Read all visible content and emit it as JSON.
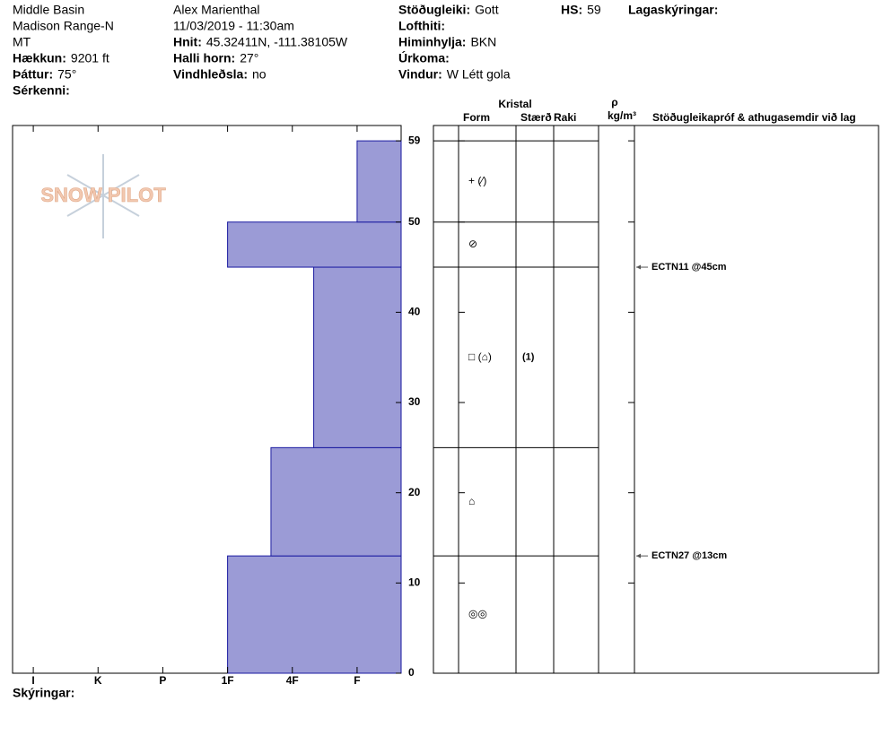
{
  "header": {
    "columns": [
      [
        {
          "text": "Middle Basin"
        },
        {
          "text": "Madison Range-N"
        },
        {
          "text": "MT"
        },
        {
          "label": "Hækkun:",
          "value": "9201 ft"
        },
        {
          "label": "Þáttur:",
          "value": "75°"
        },
        {
          "label": "Sérkenni:"
        }
      ],
      [
        {
          "text": "Alex Marienthal"
        },
        {
          "text": "11/03/2019 - 11:30am"
        },
        {
          "label": "Hnit:",
          "value": "45.32411N, -111.38105W"
        },
        {
          "label": "Halli horn:",
          "value": "27°"
        },
        {
          "label": "Vindhleðsla:",
          "value": "no"
        }
      ],
      [
        {
          "label": "Stöðugleiki:",
          "value": "Gott"
        },
        {
          "label": "Lofthiti:"
        },
        {
          "label": "Himinhylja:",
          "value": "BKN"
        },
        {
          "label": "Úrkoma:"
        },
        {
          "label": "Vindur:",
          "value": "W Létt gola"
        }
      ],
      [
        {
          "label": "HS:",
          "value": "59"
        }
      ],
      [
        {
          "label": "Lagaskýringar:"
        }
      ]
    ],
    "logo": "SNOW PILOT"
  },
  "chart_data": {
    "type": "bar",
    "orientation": "horizontal",
    "xlim": [
      6.32,
      0.32
    ],
    "xticks": [
      {
        "value": 6,
        "label": "I"
      },
      {
        "value": 5,
        "label": "K"
      },
      {
        "value": 4,
        "label": "P"
      },
      {
        "value": 3,
        "label": "1F"
      },
      {
        "value": 2,
        "label": "4F"
      },
      {
        "value": 1,
        "label": "F"
      }
    ],
    "ylim": [
      0,
      60.7
    ],
    "yticks": [
      0,
      10,
      20,
      30,
      40,
      50,
      59
    ],
    "color": "#9b9bd6",
    "edge_color": "#1a1aa0",
    "layers": [
      {
        "bottom": 0,
        "top": 13,
        "hardness": 3,
        "form": "◎◎"
      },
      {
        "bottom": 13,
        "top": 25,
        "hardness": 2.33,
        "form": "⌂"
      },
      {
        "bottom": 25,
        "top": 45,
        "hardness": 1.67,
        "form": "□ (⌂)",
        "size": "(1)"
      },
      {
        "bottom": 45,
        "top": 50,
        "hardness": 3,
        "form": "⊘"
      },
      {
        "bottom": 50,
        "top": 59,
        "hardness": 1,
        "form": "+ (⁄)"
      }
    ]
  },
  "table": {
    "headers": {
      "crystal": "Kristal",
      "form": "Form",
      "size": "Stærð",
      "moisture": "Raki",
      "rho": "ρ",
      "density_unit": "kg/m³",
      "comments": "Stöðugleikapróf & athugasemdir við lag"
    },
    "tests": [
      {
        "label": "ECTN11 @45cm",
        "depth": 45
      },
      {
        "label": "ECTN27 @13cm",
        "depth": 13
      }
    ]
  },
  "footer": {
    "legend": "Skýringar:"
  }
}
